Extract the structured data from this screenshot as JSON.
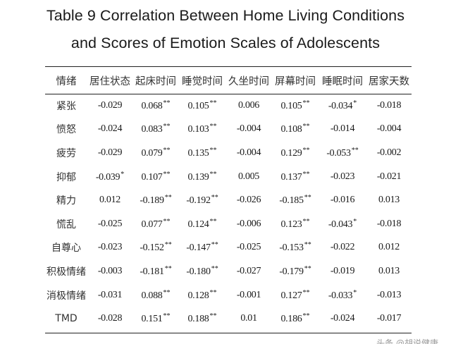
{
  "title": {
    "line1": "Table 9   Correlation Between Home Living Conditions",
    "line2": "and Scores of Emotion Scales of Adolescents"
  },
  "table": {
    "columns": [
      "情绪",
      "居住状态",
      "起床时间",
      "睡觉时间",
      "久坐时间",
      "屏幕时间",
      "睡眠时间",
      "居家天数"
    ],
    "rows": [
      {
        "label": "紧张",
        "cells": [
          {
            "v": "-0.029",
            "s": ""
          },
          {
            "v": "0.068",
            "s": "**"
          },
          {
            "v": "0.105",
            "s": "**"
          },
          {
            "v": "0.006",
            "s": ""
          },
          {
            "v": "0.105",
            "s": "**"
          },
          {
            "v": "-0.034",
            "s": "*"
          },
          {
            "v": "-0.018",
            "s": ""
          }
        ]
      },
      {
        "label": "愤怒",
        "cells": [
          {
            "v": "-0.024",
            "s": ""
          },
          {
            "v": "0.083",
            "s": "**"
          },
          {
            "v": "0.103",
            "s": "**"
          },
          {
            "v": "-0.004",
            "s": ""
          },
          {
            "v": "0.108",
            "s": "**"
          },
          {
            "v": "-0.014",
            "s": ""
          },
          {
            "v": "-0.004",
            "s": ""
          }
        ]
      },
      {
        "label": "疲劳",
        "cells": [
          {
            "v": "-0.029",
            "s": ""
          },
          {
            "v": "0.079",
            "s": "**"
          },
          {
            "v": "0.135",
            "s": "**"
          },
          {
            "v": "-0.004",
            "s": ""
          },
          {
            "v": "0.129",
            "s": "**"
          },
          {
            "v": "-0.053",
            "s": "**"
          },
          {
            "v": "-0.002",
            "s": ""
          }
        ]
      },
      {
        "label": "抑郁",
        "cells": [
          {
            "v": "-0.039",
            "s": "*"
          },
          {
            "v": "0.107",
            "s": "**"
          },
          {
            "v": "0.139",
            "s": "**"
          },
          {
            "v": "0.005",
            "s": ""
          },
          {
            "v": "0.137",
            "s": "**"
          },
          {
            "v": "-0.023",
            "s": ""
          },
          {
            "v": "-0.021",
            "s": ""
          }
        ]
      },
      {
        "label": "精力",
        "cells": [
          {
            "v": "0.012",
            "s": ""
          },
          {
            "v": "-0.189",
            "s": "**"
          },
          {
            "v": "-0.192",
            "s": "**"
          },
          {
            "v": "-0.026",
            "s": ""
          },
          {
            "v": "-0.185",
            "s": "**"
          },
          {
            "v": "-0.016",
            "s": ""
          },
          {
            "v": "0.013",
            "s": ""
          }
        ]
      },
      {
        "label": "慌乱",
        "cells": [
          {
            "v": "-0.025",
            "s": ""
          },
          {
            "v": "0.077",
            "s": "**"
          },
          {
            "v": "0.124",
            "s": "**"
          },
          {
            "v": "-0.006",
            "s": ""
          },
          {
            "v": "0.123",
            "s": "**"
          },
          {
            "v": "-0.043",
            "s": "*"
          },
          {
            "v": "-0.018",
            "s": ""
          }
        ]
      },
      {
        "label": "自尊心",
        "cells": [
          {
            "v": "-0.023",
            "s": ""
          },
          {
            "v": "-0.152",
            "s": "**"
          },
          {
            "v": "-0.147",
            "s": "**"
          },
          {
            "v": "-0.025",
            "s": ""
          },
          {
            "v": "-0.153",
            "s": "**"
          },
          {
            "v": "-0.022",
            "s": ""
          },
          {
            "v": "0.012",
            "s": ""
          }
        ]
      },
      {
        "label": "积极情绪",
        "cells": [
          {
            "v": "-0.003",
            "s": ""
          },
          {
            "v": "-0.181",
            "s": "**"
          },
          {
            "v": "-0.180",
            "s": "**"
          },
          {
            "v": "-0.027",
            "s": ""
          },
          {
            "v": "-0.179",
            "s": "**"
          },
          {
            "v": "-0.019",
            "s": ""
          },
          {
            "v": "0.013",
            "s": ""
          }
        ]
      },
      {
        "label": "消极情绪",
        "cells": [
          {
            "v": "-0.031",
            "s": ""
          },
          {
            "v": "0.088",
            "s": "**"
          },
          {
            "v": "0.128",
            "s": "**"
          },
          {
            "v": "-0.001",
            "s": ""
          },
          {
            "v": "0.127",
            "s": "**"
          },
          {
            "v": "-0.033",
            "s": "*"
          },
          {
            "v": "-0.013",
            "s": ""
          }
        ]
      },
      {
        "label": "TMD",
        "cells": [
          {
            "v": "-0.028",
            "s": ""
          },
          {
            "v": "0.151",
            "s": "**"
          },
          {
            "v": "0.188",
            "s": "**"
          },
          {
            "v": "0.01",
            "s": ""
          },
          {
            "v": "0.186",
            "s": "**"
          },
          {
            "v": "-0.024",
            "s": ""
          },
          {
            "v": "-0.017",
            "s": ""
          }
        ]
      }
    ]
  },
  "watermark": "头条 @胡说健康"
}
